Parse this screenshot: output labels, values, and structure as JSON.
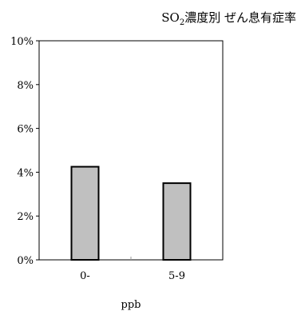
{
  "chart_data": {
    "type": "bar",
    "title_main": "SO",
    "title_sub": "2",
    "title_rest": "濃度別 ぜん息有症率",
    "xlabel": "ppb",
    "categories": [
      "0-",
      "5-9"
    ],
    "values": [
      4.25,
      3.5
    ],
    "ylim": [
      0,
      10
    ],
    "yticks": [
      0,
      2,
      4,
      6,
      8,
      10
    ],
    "ytick_labels": [
      "0%",
      "2%",
      "4%",
      "6%",
      "8%",
      "10%"
    ],
    "grid": false,
    "legend": "none",
    "colors": {
      "bar_fill": "#c0c0c0",
      "bar_stroke": "#000000",
      "axis": "#000000"
    }
  }
}
